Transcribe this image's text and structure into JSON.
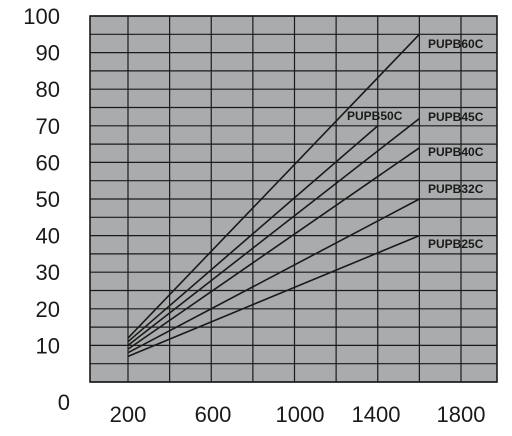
{
  "chart_data": {
    "type": "line",
    "title": "",
    "xlabel": "",
    "ylabel": "",
    "xlim": [
      200,
      2000
    ],
    "ylim": [
      0,
      100
    ],
    "x_ticks": [
      200,
      600,
      1000,
      1400,
      1800
    ],
    "x_tick_labels": [
      "200",
      "600",
      "1000",
      "1400",
      "1800"
    ],
    "y_ticks": [
      0,
      10,
      20,
      30,
      40,
      50,
      60,
      70,
      80,
      90,
      100
    ],
    "y_tick_labels": [
      "0",
      "10",
      "20",
      "30",
      "40",
      "50",
      "60",
      "70",
      "80",
      "90",
      "100"
    ],
    "grid": true,
    "plot_background": "#a9abad",
    "line_color": "#1a1a1a",
    "series": [
      {
        "name": "PUPB60C",
        "x": [
          200,
          1600
        ],
        "y": [
          12,
          95
        ]
      },
      {
        "name": "PUPB50C",
        "x": [
          200,
          1400
        ],
        "y": [
          11,
          70
        ]
      },
      {
        "name": "PUPB45C",
        "x": [
          200,
          1600
        ],
        "y": [
          10,
          72
        ]
      },
      {
        "name": "PUPB40C",
        "x": [
          200,
          1600
        ],
        "y": [
          9,
          64
        ]
      },
      {
        "name": "PUPB32C",
        "x": [
          200,
          1600
        ],
        "y": [
          8,
          50
        ]
      },
      {
        "name": "PUPB25C",
        "x": [
          200,
          1600
        ],
        "y": [
          7,
          40
        ]
      }
    ]
  }
}
